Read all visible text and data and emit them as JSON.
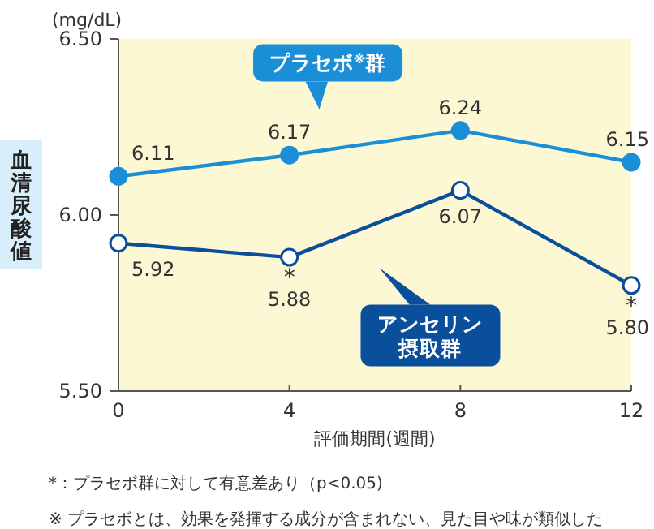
{
  "chart_data": {
    "type": "line",
    "x": [
      0,
      4,
      8,
      12
    ],
    "xlim": [
      0,
      12
    ],
    "xticks": [
      0,
      4,
      8,
      12
    ],
    "ylim": [
      5.5,
      6.5
    ],
    "yticks": [
      {
        "value": 5.5,
        "label": "5.50"
      },
      {
        "value": 6.0,
        "label": "6.00"
      },
      {
        "value": 6.5,
        "label": "6.50"
      }
    ],
    "xlabel": "評価期間(週間)",
    "ylabel": "血清尿酸値",
    "series": [
      {
        "name": "プラセボ$^{※}$群",
        "color": "#1a8fd8",
        "values": [
          6.11,
          6.17,
          6.24,
          6.15
        ],
        "value_labels": [
          "6.11",
          "6.17",
          "6.24",
          "6.15"
        ]
      },
      {
        "name": "アンセリン摂取群",
        "color": "#0a4f9c",
        "values": [
          5.92,
          5.88,
          6.07,
          5.8
        ],
        "value_labels": [
          "5.92",
          "5.88",
          "6.07",
          "5.80"
        ]
      }
    ],
    "marker": "circle",
    "grid": false,
    "annotations": [
      "(mg/dL)",
      {
        "text": "*",
        "x": 4,
        "y": 5.88
      },
      {
        "text": "*",
        "x": 12,
        "y": 5.8
      },
      "*：プラセボ群に対して有意差あり（p<0.05)",
      "※ プラセボとは、効果を発揮する成分が含まれない、見た目や味が類似した"
    ]
  }
}
